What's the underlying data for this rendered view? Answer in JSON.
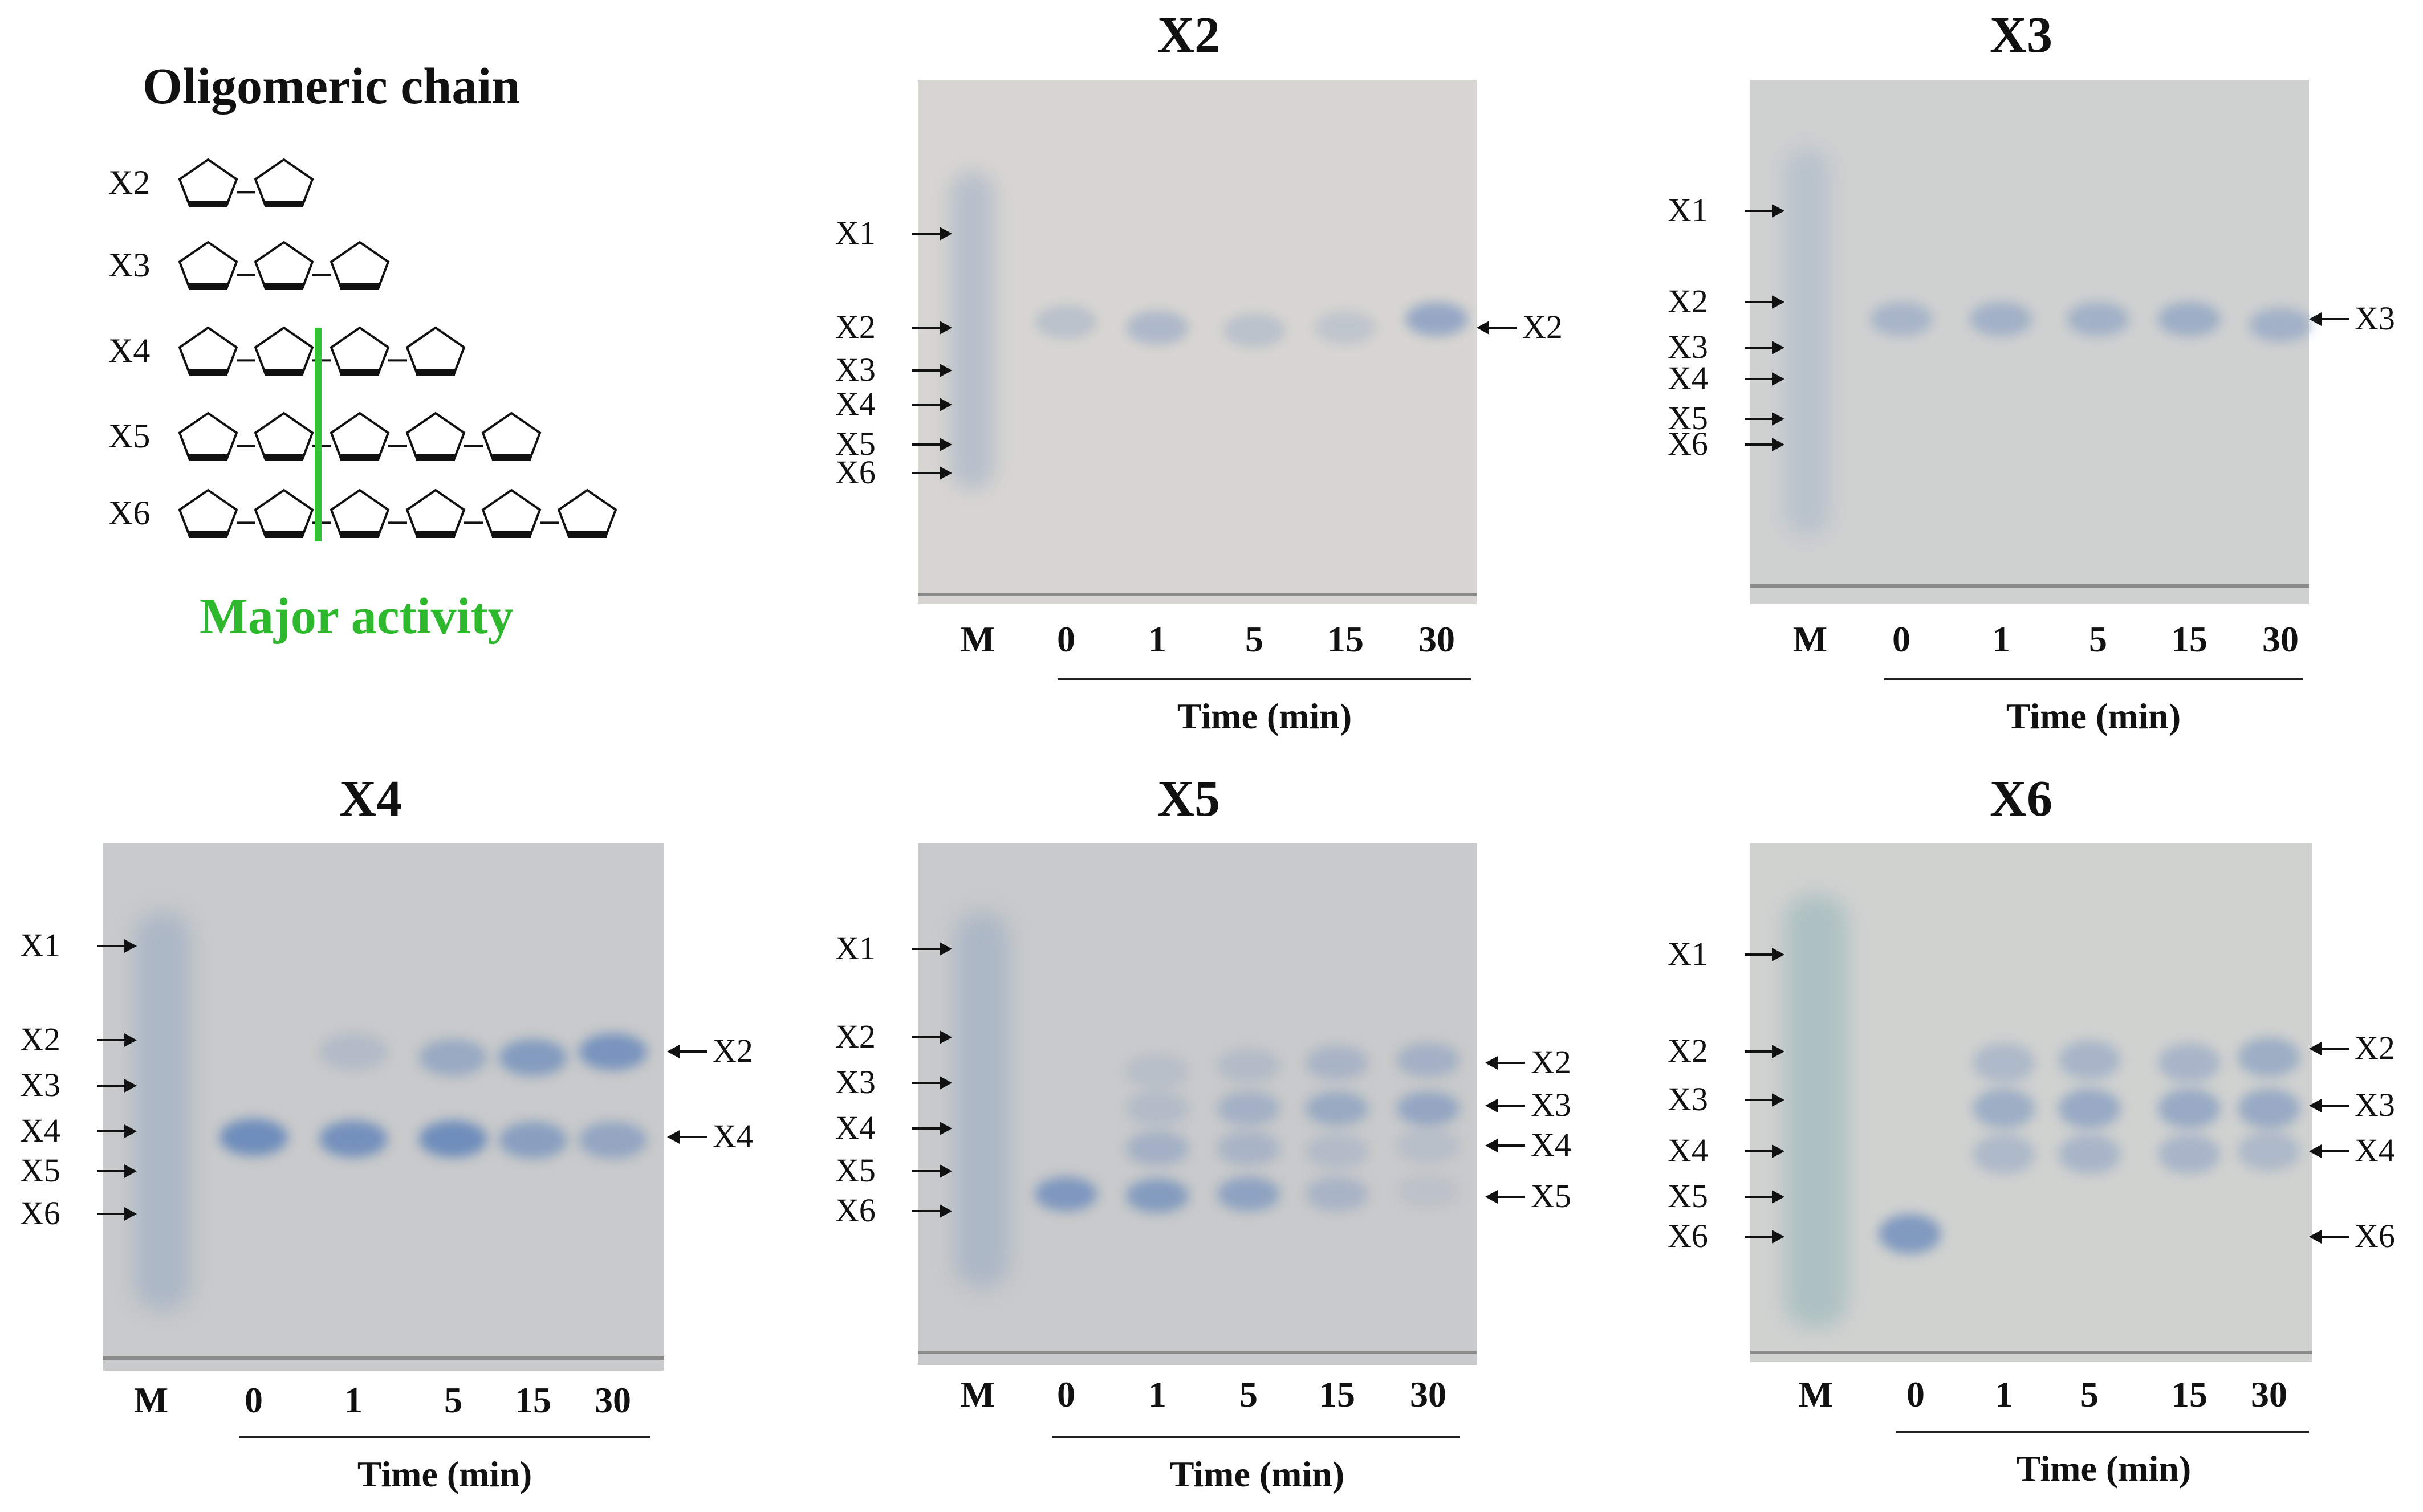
{
  "legend": {
    "title": "Oligomeric chain",
    "rows": [
      "X2",
      "X3",
      "X4",
      "X5",
      "X6"
    ],
    "major_activity": "Major activity"
  },
  "lanes": [
    "M",
    "0",
    "1",
    "5",
    "15",
    "30"
  ],
  "time_axis": "Time (min)",
  "marker_labels": [
    "X1",
    "X2",
    "X3",
    "X4",
    "X5",
    "X6"
  ],
  "panels": [
    {
      "title": "X2",
      "product_labels": [
        "X2"
      ]
    },
    {
      "title": "X3",
      "product_labels": [
        "X3"
      ]
    },
    {
      "title": "X4",
      "product_labels": [
        "X2",
        "X4"
      ]
    },
    {
      "title": "X5",
      "product_labels": [
        "X2",
        "X3",
        "X4",
        "X5"
      ]
    },
    {
      "title": "X6",
      "product_labels": [
        "X2",
        "X3",
        "X4",
        "X6"
      ]
    }
  ],
  "colors": {
    "spot": "#7d97c4",
    "major_line": "#33c233",
    "plate": "#d5d5d2"
  }
}
